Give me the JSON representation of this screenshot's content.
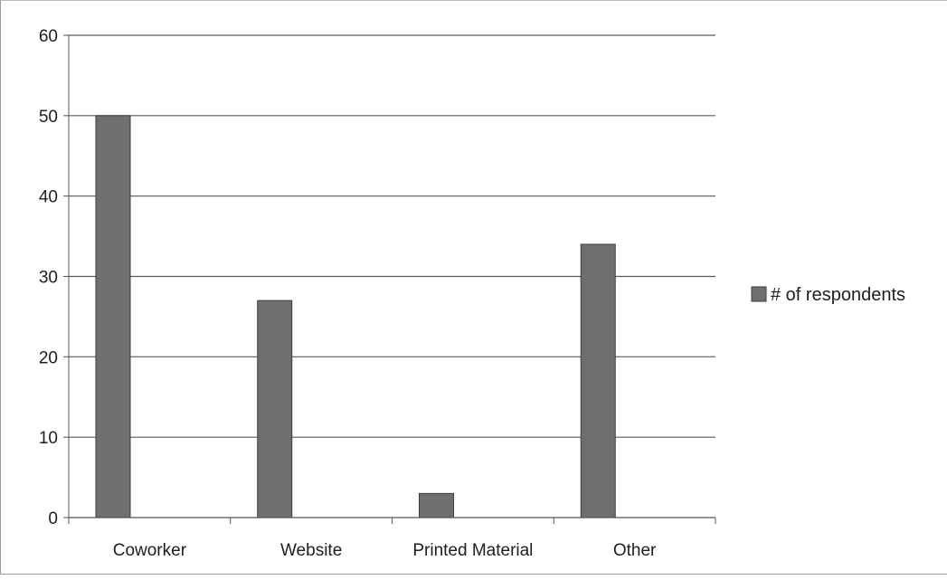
{
  "chart_data": {
    "type": "bar",
    "categories": [
      "Coworker",
      "Website",
      "Printed Material",
      "Other"
    ],
    "series": [
      {
        "name": "# of respondents",
        "values": [
          50,
          27,
          3,
          34
        ]
      }
    ],
    "title": "",
    "xlabel": "",
    "ylabel": "",
    "ylim": [
      0,
      60
    ],
    "yticks": [
      0,
      10,
      20,
      30,
      40,
      50,
      60
    ],
    "grid": true,
    "legend_position": "right",
    "colors": {
      "bar": "#6f6f6f",
      "bar_edge": "#3e3e3e",
      "grid": "#5a5a5a",
      "axis": "#555555"
    }
  }
}
